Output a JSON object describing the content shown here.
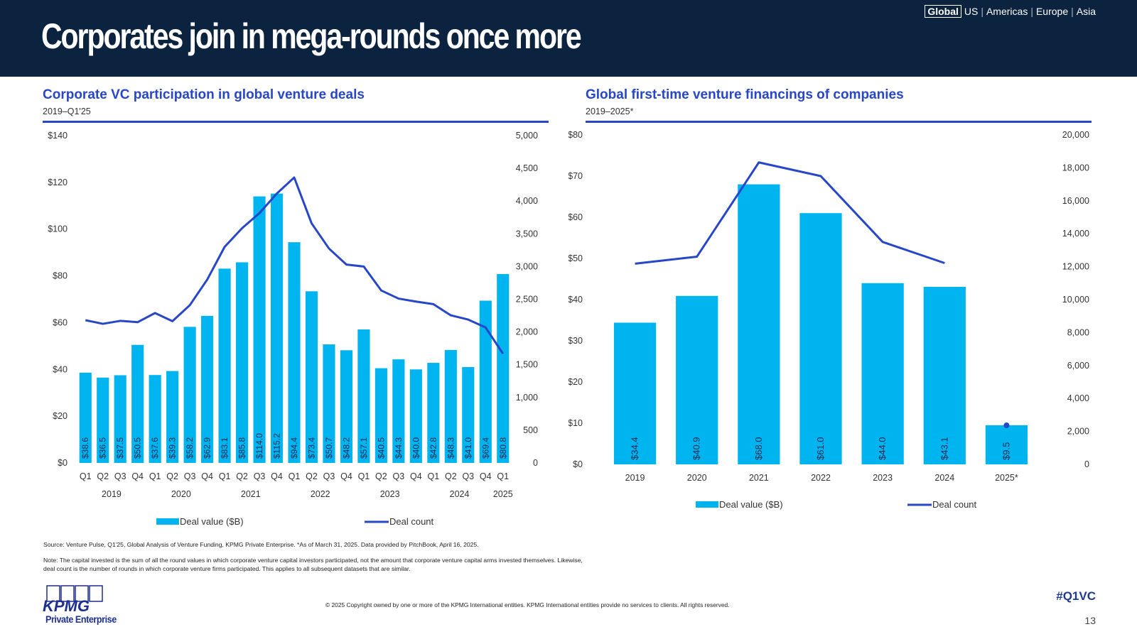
{
  "header": {
    "title": "Corporates join in mega-rounds once more",
    "regions": [
      {
        "label": "Global",
        "selected": true
      },
      {
        "label": "US",
        "selected": false
      },
      {
        "label": "Americas",
        "selected": false
      },
      {
        "label": "Europe",
        "selected": false
      },
      {
        "label": "Asia",
        "selected": false
      }
    ],
    "separator": "|"
  },
  "colors": {
    "header_bg": "#0c233f",
    "accent_blue": "#2746c8",
    "bar": "#00b4f0",
    "line": "#2746c8"
  },
  "chart_data": [
    {
      "type": "bar+line",
      "title": "Corporate VC participation in global venture deals",
      "subtitle": "2019–Q1'25",
      "categories": [
        "Q1",
        "Q2",
        "Q3",
        "Q4",
        "Q1",
        "Q2",
        "Q3",
        "Q4",
        "Q1",
        "Q2",
        "Q3",
        "Q4",
        "Q1",
        "Q2",
        "Q3",
        "Q4",
        "Q1",
        "Q2",
        "Q3",
        "Q4",
        "Q1",
        "Q2",
        "Q3",
        "Q4",
        "Q1"
      ],
      "year_groups": [
        {
          "label": "2019",
          "start": 0,
          "count": 4
        },
        {
          "label": "2020",
          "start": 4,
          "count": 4
        },
        {
          "label": "2021",
          "start": 8,
          "count": 4
        },
        {
          "label": "2022",
          "start": 12,
          "count": 4
        },
        {
          "label": "2023",
          "start": 16,
          "count": 4
        },
        {
          "label": "2024",
          "start": 20,
          "count": 4
        },
        {
          "label": "2025",
          "start": 24,
          "count": 1
        }
      ],
      "series": [
        {
          "name": "Deal value ($B)",
          "kind": "bar",
          "axis": "left",
          "values": [
            38.6,
            36.5,
            37.5,
            50.5,
            37.6,
            39.3,
            58.2,
            62.9,
            83.1,
            85.8,
            114.0,
            115.2,
            94.4,
            73.4,
            50.7,
            48.2,
            57.1,
            40.5,
            44.3,
            40.0,
            42.8,
            48.3,
            41.0,
            69.4,
            80.8
          ],
          "labels": [
            "$38.6",
            "$36.5",
            "$37.5",
            "$50.5",
            "$37.6",
            "$39.3",
            "$58.2",
            "$62.9",
            "$83.1",
            "$85.8",
            "$114.0",
            "$115.2",
            "$94.4",
            "$73.4",
            "$50.7",
            "$48.2",
            "$57.1",
            "$40.5",
            "$44.3",
            "$40.0",
            "$42.8",
            "$48.3",
            "$41.0",
            "$69.4",
            "$80.8"
          ]
        },
        {
          "name": "Deal count",
          "kind": "line",
          "axis": "right",
          "values": [
            2180,
            2125,
            2170,
            2150,
            2290,
            2165,
            2410,
            2800,
            3300,
            3585,
            3815,
            4115,
            4360,
            3660,
            3275,
            3030,
            3000,
            2635,
            2510,
            2465,
            2425,
            2255,
            2190,
            2070,
            1670
          ]
        }
      ],
      "y_left": {
        "ticks": [
          "$0",
          "$20",
          "$40",
          "$60",
          "$80",
          "$100",
          "$120",
          "$140"
        ],
        "range": [
          0,
          140
        ]
      },
      "y_right": {
        "ticks": [
          "0",
          "500",
          "1,000",
          "1,500",
          "2,000",
          "2,500",
          "3,000",
          "3,500",
          "4,000",
          "4,500",
          "5,000"
        ],
        "range": [
          0,
          5000
        ]
      },
      "legend": {
        "position": "bottom",
        "items": [
          "Deal value ($B)",
          "Deal count"
        ]
      },
      "grid": false
    },
    {
      "type": "bar+line",
      "title": "Global first-time venture financings of companies",
      "subtitle": "2019–2025*",
      "categories": [
        "2019",
        "2020",
        "2021",
        "2022",
        "2023",
        "2024",
        "2025*"
      ],
      "series": [
        {
          "name": "Deal value ($B)",
          "kind": "bar",
          "axis": "left",
          "values": [
            34.4,
            40.9,
            68.0,
            61.0,
            44.0,
            43.1,
            9.5
          ],
          "labels": [
            "$34.4",
            "$40.9",
            "$68.0",
            "$61.0",
            "$44.0",
            "$43.1",
            "$9.5"
          ]
        },
        {
          "name": "Deal count",
          "kind": "line",
          "axis": "right",
          "values": [
            12180,
            12610,
            18330,
            17500,
            13500,
            12220,
            2370
          ],
          "line_points": 6,
          "marker_only_last": true
        }
      ],
      "y_left": {
        "ticks": [
          "$0",
          "$10",
          "$20",
          "$30",
          "$40",
          "$50",
          "$60",
          "$70",
          "$80"
        ],
        "range": [
          0,
          80
        ]
      },
      "y_right": {
        "ticks": [
          "0",
          "2,000",
          "4,000",
          "6,000",
          "8,000",
          "10,000",
          "12,000",
          "14,000",
          "16,000",
          "18,000",
          "20,000"
        ],
        "range": [
          0,
          20000
        ]
      },
      "legend": {
        "position": "bottom",
        "items": [
          "Deal value ($B)",
          "Deal count"
        ]
      },
      "grid": false
    }
  ],
  "footer": {
    "source": "Source: Venture Pulse, Q1'25, Global Analysis of Venture Funding, KPMG Private Enterprise. *As of March 31, 2025. Data provided by PitchBook, April 16, 2025.",
    "note": "Note: The capital invested is the sum of all the round values in which corporate venture capital investors participated, not the amount that corporate venture capital arms invested themselves. Likewise, deal count is the number of rounds in which corporate venture firms participated. This applies to all subsequent datasets that are similar.",
    "copyright": "© 2025 Copyright owned by one or more of the KPMG International entities. KPMG International entities provide no services to clients. All rights reserved.",
    "hashtag": "#Q1VC",
    "page_number": "13",
    "logo_text": "KPMG",
    "logo_sub": "Private Enterprise"
  }
}
